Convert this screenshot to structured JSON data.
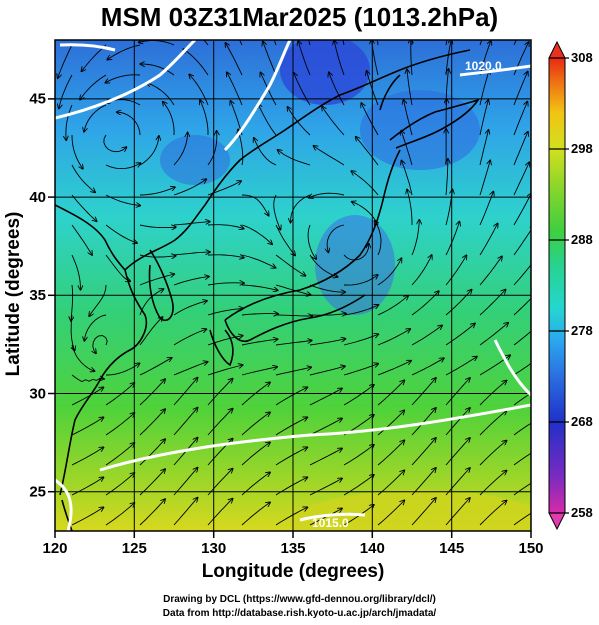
{
  "title": "MSM 03Z31Mar2025 (1013.2hPa)",
  "x_axis": {
    "label": "Longitude (degrees)",
    "range": [
      120,
      150
    ],
    "ticks": [
      120,
      125,
      130,
      135,
      140,
      145,
      150
    ]
  },
  "y_axis": {
    "label": "Latitude  (degrees)",
    "range": [
      22.5,
      47.5
    ],
    "ticks": [
      25,
      30,
      35,
      40,
      45
    ]
  },
  "colorbar": {
    "min": 258,
    "max": 308,
    "ticks": [
      258,
      268,
      278,
      288,
      298,
      308
    ],
    "colors": [
      "#d62ba8",
      "#7a2bc0",
      "#2030c8",
      "#2a6fe0",
      "#2aa8ef",
      "#25d6d0",
      "#28d28a",
      "#3fcf3f",
      "#8ed62a",
      "#d2e01e",
      "#f2c414",
      "#f07a14",
      "#e82a14"
    ]
  },
  "isobars": [
    {
      "label": "1020.0"
    },
    {
      "label": "1015.0"
    }
  ],
  "footer": {
    "line1": "Drawing by DCL (https://www.gfd-dennou.org/library/dcl/)",
    "line2": "Data from http://database.rish.kyoto-u.ac.jp/arch/jmadata/"
  }
}
